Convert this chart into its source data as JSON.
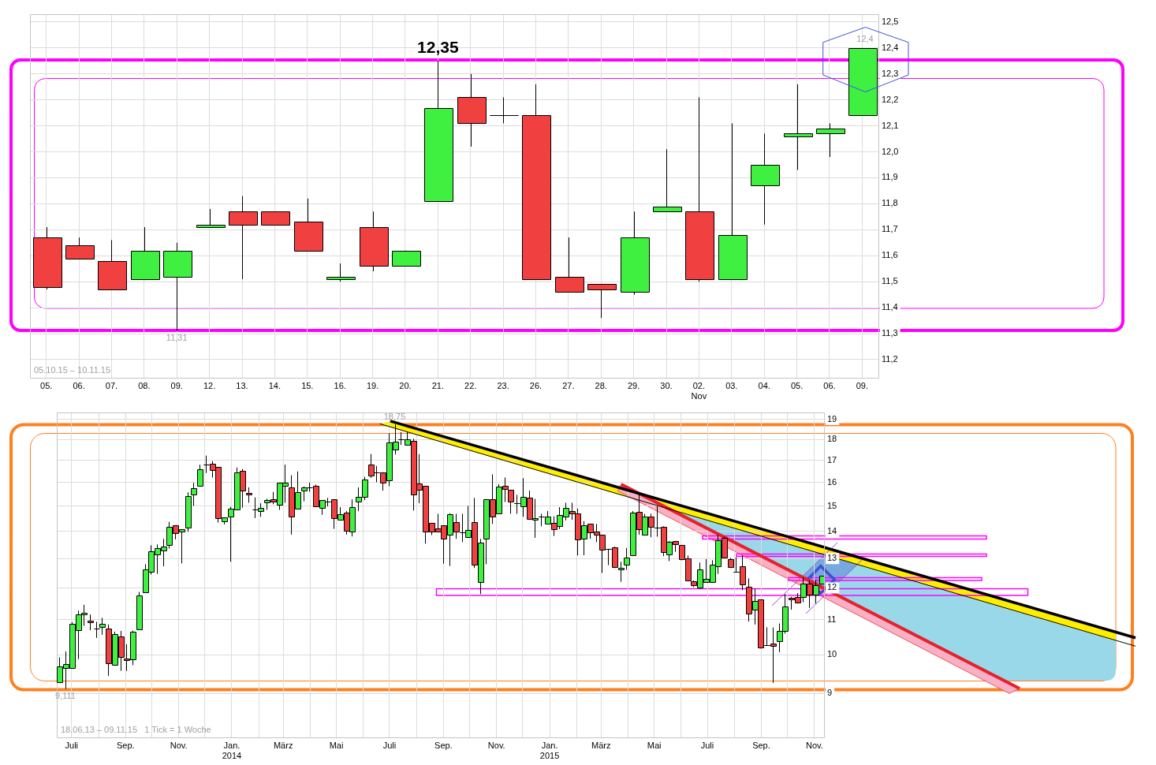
{
  "chart_data": [
    {
      "type": "candlestick",
      "categories": [
        "05.",
        "06.",
        "07.",
        "08.",
        "09.",
        "12.",
        "13.",
        "14.",
        "15.",
        "16.",
        "19.",
        "20.",
        "21.",
        "22.",
        "23.",
        "26.",
        "27.",
        "28.",
        "29.",
        "30.",
        "02.\nNov",
        "03.",
        "04.",
        "05.",
        "06.",
        "09."
      ],
      "ohlc": [
        [
          11.67,
          11.71,
          11.47,
          11.48
        ],
        [
          11.64,
          11.67,
          11.59,
          11.59
        ],
        [
          11.58,
          11.66,
          11.47,
          11.47
        ],
        [
          11.51,
          11.71,
          11.51,
          11.62
        ],
        [
          11.52,
          11.65,
          11.31,
          11.62
        ],
        [
          11.71,
          11.78,
          11.71,
          11.72
        ],
        [
          11.77,
          11.83,
          11.51,
          11.72
        ],
        [
          11.77,
          11.77,
          11.72,
          11.72
        ],
        [
          11.73,
          11.82,
          11.62,
          11.62
        ],
        [
          11.51,
          11.57,
          11.5,
          11.52
        ],
        [
          11.71,
          11.77,
          11.54,
          11.56
        ],
        [
          11.56,
          11.62,
          11.56,
          11.62
        ],
        [
          11.81,
          12.35,
          11.81,
          12.17
        ],
        [
          12.21,
          12.3,
          12.02,
          12.11
        ],
        [
          12.14,
          12.21,
          12.11,
          12.14
        ],
        [
          12.14,
          12.26,
          11.51,
          11.51
        ],
        [
          11.52,
          11.67,
          11.46,
          11.46
        ],
        [
          11.49,
          11.49,
          11.36,
          11.47
        ],
        [
          11.46,
          11.77,
          11.45,
          11.67
        ],
        [
          11.77,
          12.01,
          11.77,
          11.79
        ],
        [
          11.77,
          12.21,
          11.5,
          11.51
        ],
        [
          11.51,
          12.11,
          11.51,
          11.68
        ],
        [
          11.87,
          12.07,
          11.72,
          11.95
        ],
        [
          12.06,
          12.26,
          11.93,
          12.07
        ],
        [
          12.07,
          12.11,
          11.98,
          12.09
        ],
        [
          12.14,
          12.4,
          12.14,
          12.4
        ]
      ],
      "colors": [
        "#f04040",
        "#f04040",
        "#f04040",
        "#40f040",
        "#40f040",
        "#40f040",
        "#f04040",
        "#f04040",
        "#f04040",
        "#40f040",
        "#f04040",
        "#40f040",
        "#40f040",
        "#f04040",
        "#000000",
        "#f04040",
        "#f04040",
        "#f04040",
        "#40f040",
        "#40f040",
        "#f04040",
        "#40f040",
        "#40f040",
        "#40f040",
        "#40f040",
        "#40f040"
      ],
      "ylim": [
        11.13,
        12.53
      ],
      "yticks": [
        {
          "value": 11.2,
          "label": "11,2"
        },
        {
          "value": 11.3,
          "label": "11,3"
        },
        {
          "value": 11.4,
          "label": "11,4"
        },
        {
          "value": 11.5,
          "label": "11,5"
        },
        {
          "value": 11.6,
          "label": "11,6"
        },
        {
          "value": 11.7,
          "label": "11,7"
        },
        {
          "value": 11.8,
          "label": "11,8"
        },
        {
          "value": 11.9,
          "label": "11,9"
        },
        {
          "value": 12.0,
          "label": "12,0"
        },
        {
          "value": 12.1,
          "label": "12,1"
        },
        {
          "value": 12.2,
          "label": "12,2"
        },
        {
          "value": 12.3,
          "label": "12,3"
        },
        {
          "value": 12.4,
          "label": "12,4"
        },
        {
          "value": 12.5,
          "label": "12,5"
        }
      ],
      "grid": true,
      "annotations": [
        {
          "text": "12,35",
          "x": "21.",
          "y": 12.35
        },
        {
          "text": "11,31",
          "x": "09.",
          "y": 11.31
        },
        "12,4",
        "05.10.15 – 10.11.15"
      ]
    },
    {
      "type": "candlestick",
      "x": [
        "2013-06-17",
        "2013-06-24",
        "2013-07-01",
        "2013-07-08",
        "2013-07-15",
        "2013-07-22",
        "2013-07-29",
        "2013-08-05",
        "2013-08-12",
        "2013-08-19",
        "2013-08-26",
        "2013-09-02",
        "2013-09-09",
        "2013-09-16",
        "2013-09-23",
        "2013-09-30",
        "2013-10-07",
        "2013-10-14",
        "2013-10-21",
        "2013-10-28",
        "2013-11-04",
        "2013-11-11",
        "2013-11-18",
        "2013-11-25",
        "2013-12-02",
        "2013-12-09",
        "2013-12-16",
        "2013-12-23",
        "2013-12-30",
        "2014-01-06",
        "2014-01-13",
        "2014-01-20",
        "2014-01-27",
        "2014-02-03",
        "2014-02-10",
        "2014-02-17",
        "2014-02-24",
        "2014-03-03",
        "2014-03-10",
        "2014-03-17",
        "2014-03-24",
        "2014-03-31",
        "2014-04-07",
        "2014-04-14",
        "2014-04-21",
        "2014-04-28",
        "2014-05-05",
        "2014-05-12",
        "2014-05-19",
        "2014-05-26",
        "2014-06-02",
        "2014-06-09",
        "2014-06-16",
        "2014-06-23",
        "2014-06-30",
        "2014-07-07",
        "2014-07-14",
        "2014-07-21",
        "2014-07-28",
        "2014-08-04",
        "2014-08-11",
        "2014-08-18",
        "2014-08-25",
        "2014-09-01",
        "2014-09-08",
        "2014-09-15",
        "2014-09-22",
        "2014-09-29",
        "2014-10-06",
        "2014-10-13",
        "2014-10-20",
        "2014-10-27",
        "2014-11-03",
        "2014-11-10",
        "2014-11-17",
        "2014-11-24",
        "2014-12-01",
        "2014-12-08",
        "2014-12-15",
        "2014-12-22",
        "2014-12-29",
        "2015-01-05",
        "2015-01-12",
        "2015-01-19",
        "2015-01-26",
        "2015-02-02",
        "2015-02-09",
        "2015-02-16",
        "2015-02-23",
        "2015-03-02",
        "2015-03-09",
        "2015-03-16",
        "2015-03-23",
        "2015-03-30",
        "2015-04-06",
        "2015-04-13",
        "2015-04-20",
        "2015-04-27",
        "2015-05-04",
        "2015-05-11",
        "2015-05-18",
        "2015-05-25",
        "2015-06-01",
        "2015-06-08",
        "2015-06-15",
        "2015-06-22",
        "2015-06-29",
        "2015-07-06",
        "2015-07-13",
        "2015-07-20",
        "2015-07-27",
        "2015-08-03",
        "2015-08-10",
        "2015-08-17",
        "2015-08-24",
        "2015-08-31",
        "2015-09-07",
        "2015-09-14",
        "2015-09-21",
        "2015-09-28",
        "2015-10-05",
        "2015-10-12",
        "2015-10-19",
        "2015-10-26",
        "2015-11-02",
        "2015-11-09"
      ],
      "ohlc": [
        [
          9.27,
          9.93,
          9.27,
          9.68
        ],
        [
          9.64,
          10.09,
          9.111,
          9.75
        ],
        [
          9.64,
          10.93,
          9.64,
          10.88
        ],
        [
          10.69,
          11.28,
          9.88,
          11.16
        ],
        [
          11.16,
          11.46,
          10.82,
          11.21
        ],
        [
          10.97,
          11.16,
          10.69,
          10.92
        ],
        [
          10.74,
          10.94,
          10.47,
          10.74
        ],
        [
          10.78,
          11.06,
          10.56,
          10.87
        ],
        [
          10.73,
          10.86,
          9.44,
          9.78
        ],
        [
          9.72,
          10.65,
          9.72,
          10.57
        ],
        [
          10.52,
          10.67,
          9.57,
          9.93
        ],
        [
          9.89,
          10.29,
          9.57,
          9.85
        ],
        [
          9.87,
          10.68,
          9.72,
          10.65
        ],
        [
          10.71,
          11.87,
          10.71,
          11.75
        ],
        [
          11.87,
          12.8,
          11.84,
          12.62
        ],
        [
          12.53,
          13.48,
          12.45,
          13.26
        ],
        [
          13.14,
          13.51,
          12.47,
          13.37
        ],
        [
          13.29,
          13.72,
          12.73,
          13.43
        ],
        [
          13.5,
          14.37,
          13.36,
          14.17
        ],
        [
          14.23,
          14.23,
          13.7,
          13.95
        ],
        [
          14.0,
          14.08,
          12.83,
          14.08
        ],
        [
          14.14,
          15.58,
          13.99,
          15.42
        ],
        [
          15.47,
          15.99,
          15.01,
          15.75
        ],
        [
          15.84,
          16.8,
          15.84,
          16.6
        ],
        [
          16.8,
          17.22,
          16.42,
          16.8
        ],
        [
          16.84,
          16.96,
          16.22,
          16.55
        ],
        [
          16.7,
          16.7,
          14.34,
          14.53
        ],
        [
          14.38,
          14.54,
          14.27,
          14.54
        ],
        [
          14.57,
          14.97,
          12.89,
          14.89
        ],
        [
          14.86,
          16.67,
          14.86,
          16.45
        ],
        [
          16.53,
          16.6,
          14.94,
          15.65
        ],
        [
          15.55,
          15.79,
          15.14,
          15.48
        ],
        [
          14.88,
          15.36,
          14.52,
          14.88
        ],
        [
          14.8,
          15.12,
          14.57,
          14.93
        ],
        [
          15.15,
          15.3,
          14.85,
          15.25
        ],
        [
          15.28,
          15.59,
          15.08,
          15.19
        ],
        [
          15.06,
          15.99,
          14.85,
          15.99
        ],
        [
          15.86,
          16.8,
          15.14,
          15.99
        ],
        [
          15.79,
          16.32,
          13.88,
          14.57
        ],
        [
          14.89,
          16.49,
          14.89,
          15.59
        ],
        [
          15.65,
          15.83,
          15.2,
          15.79
        ],
        [
          15.79,
          15.99,
          15.6,
          15.79
        ],
        [
          15.86,
          15.91,
          14.99,
          14.99
        ],
        [
          14.93,
          15.25,
          14.65,
          15.25
        ],
        [
          15.2,
          15.34,
          14.99,
          15.2
        ],
        [
          15.28,
          15.28,
          14.1,
          14.53
        ],
        [
          14.46,
          14.96,
          14.46,
          14.67
        ],
        [
          14.74,
          14.8,
          13.88,
          14.02
        ],
        [
          14.0,
          15.28,
          13.81,
          14.96
        ],
        [
          15.18,
          15.79,
          14.8,
          15.38
        ],
        [
          15.38,
          16.25,
          15.25,
          16.13
        ],
        [
          16.8,
          17.29,
          16.2,
          16.3
        ],
        [
          16.46,
          16.74,
          16.01,
          16.46
        ],
        [
          16.45,
          16.45,
          15.65,
          15.99
        ],
        [
          16.1,
          18.3,
          15.84,
          17.86
        ],
        [
          17.52,
          18.75,
          17.27,
          17.89
        ],
        [
          18.0,
          18.36,
          17.73,
          18.0
        ],
        [
          17.73,
          18.36,
          17.73,
          18.0
        ],
        [
          17.93,
          18.03,
          14.82,
          15.47
        ],
        [
          15.95,
          17.29,
          15.12,
          15.67
        ],
        [
          15.86,
          15.86,
          13.54,
          14.0
        ],
        [
          14.32,
          14.32,
          13.86,
          14.0
        ],
        [
          14.11,
          14.69,
          14.0,
          14.0
        ],
        [
          14.23,
          14.23,
          12.82,
          13.72
        ],
        [
          13.87,
          14.71,
          12.74,
          14.67
        ],
        [
          14.35,
          14.69,
          13.72,
          14.0
        ],
        [
          13.98,
          14.69,
          13.6,
          13.98
        ],
        [
          13.78,
          15.01,
          13.78,
          14.05
        ],
        [
          14.35,
          15.34,
          12.67,
          12.78
        ],
        [
          12.19,
          13.72,
          11.8,
          13.58
        ],
        [
          13.72,
          15.28,
          12.8,
          15.28
        ],
        [
          15.28,
          16.36,
          14.29,
          14.57
        ],
        [
          14.72,
          15.93,
          14.72,
          15.81
        ],
        [
          15.86,
          16.22,
          15.17,
          15.72
        ],
        [
          15.67,
          15.67,
          14.69,
          15.18
        ],
        [
          15.12,
          15.47,
          14.69,
          15.12
        ],
        [
          15.0,
          16.19,
          14.57,
          15.38
        ],
        [
          15.35,
          15.65,
          14.48,
          14.48
        ],
        [
          14.46,
          15.3,
          13.76,
          14.53
        ],
        [
          14.57,
          14.69,
          14.2,
          14.57
        ],
        [
          14.29,
          14.8,
          14.29,
          14.57
        ],
        [
          14.32,
          14.59,
          13.83,
          14.09
        ],
        [
          14.2,
          14.96,
          14.09,
          14.64
        ],
        [
          14.59,
          15.14,
          14.43,
          14.93
        ],
        [
          14.8,
          15.14,
          14.45,
          14.72
        ],
        [
          14.69,
          14.9,
          13.11,
          13.69
        ],
        [
          13.72,
          14.4,
          13.12,
          14.25
        ],
        [
          14.29,
          14.29,
          13.72,
          13.98
        ],
        [
          14.0,
          14.29,
          13.6,
          13.87
        ],
        [
          13.87,
          13.87,
          12.5,
          13.31
        ],
        [
          13.35,
          13.35,
          12.77,
          13.35
        ],
        [
          13.41,
          13.43,
          12.67,
          12.7
        ],
        [
          12.61,
          12.89,
          12.2,
          12.67
        ],
        [
          12.78,
          13.38,
          12.61,
          13.04
        ],
        [
          13.11,
          14.8,
          13.11,
          14.75
        ],
        [
          14.77,
          15.51,
          13.88,
          14.09
        ],
        [
          13.89,
          14.69,
          13.89,
          14.57
        ],
        [
          14.57,
          14.69,
          13.78,
          14.17
        ],
        [
          14.15,
          15.01,
          13.8,
          14.15
        ],
        [
          14.17,
          14.2,
          13.09,
          13.24
        ],
        [
          13.16,
          13.64,
          12.91,
          13.62
        ],
        [
          13.64,
          13.64,
          13.24,
          13.52
        ],
        [
          13.48,
          13.48,
          12.94,
          12.98
        ],
        [
          13.0,
          13.11,
          12.22,
          12.25
        ],
        [
          12.21,
          12.25,
          12.03,
          12.08
        ],
        [
          12.01,
          12.86,
          12.01,
          12.61
        ],
        [
          12.19,
          12.98,
          12.19,
          12.29
        ],
        [
          12.19,
          12.94,
          12.17,
          12.78
        ],
        [
          12.73,
          13.87,
          12.47,
          13.67
        ],
        [
          13.77,
          13.8,
          13.03,
          13.03
        ],
        [
          12.98,
          13.02,
          12.69,
          12.69
        ],
        [
          12.54,
          13.05,
          12.54,
          12.54
        ],
        [
          12.73,
          13.11,
          11.93,
          12.12
        ],
        [
          12.03,
          12.32,
          10.95,
          11.18
        ],
        [
          11.3,
          11.97,
          10.86,
          11.57
        ],
        [
          11.62,
          11.62,
          10.17,
          10.2
        ],
        [
          10.26,
          10.78,
          10.25,
          10.26
        ],
        [
          10.3,
          10.77,
          9.26,
          10.24
        ],
        [
          10.37,
          10.89,
          10.07,
          10.67
        ],
        [
          10.67,
          11.8,
          10.59,
          11.4
        ],
        [
          11.67,
          11.71,
          11.31,
          11.62
        ],
        [
          11.71,
          11.83,
          11.5,
          11.52
        ],
        [
          11.71,
          12.35,
          11.54,
          12.14
        ],
        [
          12.14,
          12.26,
          11.36,
          11.79
        ],
        [
          11.77,
          12.26,
          11.5,
          12.09
        ],
        [
          12.14,
          12.4,
          12.14,
          12.4
        ]
      ],
      "colors": [
        "#40f040",
        "#40f040",
        "#40f040",
        "#40f040",
        "#40f040",
        "#f04040",
        "#000000",
        "#40f040",
        "#f04040",
        "#40f040",
        "#f04040",
        "#f04040",
        "#40f040",
        "#40f040",
        "#40f040",
        "#40f040",
        "#40f040",
        "#40f040",
        "#40f040",
        "#f04040",
        "#40f040",
        "#40f040",
        "#40f040",
        "#40f040",
        "#000000",
        "#f04040",
        "#f04040",
        "#40f040",
        "#40f040",
        "#40f040",
        "#f04040",
        "#f04040",
        "#000000",
        "#40f040",
        "#40f040",
        "#f04040",
        "#40f040",
        "#40f040",
        "#f04040",
        "#40f040",
        "#40f040",
        "#000000",
        "#f04040",
        "#40f040",
        "#000000",
        "#f04040",
        "#40f040",
        "#f04040",
        "#40f040",
        "#40f040",
        "#40f040",
        "#f04040",
        "#000000",
        "#f04040",
        "#40f040",
        "#40f040",
        "#000000",
        "#40f040",
        "#f04040",
        "#f04040",
        "#f04040",
        "#f04040",
        "#f04040",
        "#f04040",
        "#40f040",
        "#f04040",
        "#000000",
        "#40f040",
        "#f04040",
        "#40f040",
        "#40f040",
        "#f04040",
        "#40f040",
        "#f04040",
        "#f04040",
        "#000000",
        "#40f040",
        "#f04040",
        "#40f040",
        "#000000",
        "#40f040",
        "#f04040",
        "#40f040",
        "#40f040",
        "#f04040",
        "#f04040",
        "#40f040",
        "#f04040",
        "#f04040",
        "#f04040",
        "#000000",
        "#f04040",
        "#40f040",
        "#40f040",
        "#40f040",
        "#f04040",
        "#40f040",
        "#f04040",
        "#000000",
        "#f04040",
        "#40f040",
        "#f04040",
        "#f04040",
        "#f04040",
        "#f04040",
        "#40f040",
        "#40f040",
        "#40f040",
        "#40f040",
        "#f04040",
        "#f04040",
        "#000000",
        "#f04040",
        "#f04040",
        "#40f040",
        "#f04040",
        "#000000",
        "#f04040",
        "#40f040",
        "#40f040",
        "#f04040",
        "#f04040",
        "#40f040",
        "#f04040",
        "#40f040",
        "#40f040"
      ],
      "series": [
        {
          "type": "line",
          "color": "#000000",
          "x": [
            "2014-07-02",
            "2015-11-12"
          ],
          "values": [
            18.92,
            13.41
          ]
        },
        {
          "type": "line",
          "color": "#000000",
          "x": [
            "2014-06-20",
            "2015-11-12"
          ],
          "values": [
            18.78,
            13.14
          ]
        },
        {
          "type": "line",
          "color": "#e8202c",
          "x": [
            "2015-03-24",
            "2015-11-12"
          ],
          "values": [
            15.92,
            11.99
          ]
        }
      ],
      "log": "y",
      "xlim": [
        "2013-06-14",
        "2015-11-12"
      ],
      "xticks": [
        {
          "value": "2013-07-01",
          "label": "Juli"
        },
        {
          "value": "2013-08-01",
          "label": null
        },
        {
          "value": "2013-09-01",
          "label": "Sep."
        },
        {
          "value": "2013-10-01",
          "label": null
        },
        {
          "value": "2013-11-01",
          "label": "Nov."
        },
        {
          "value": "2013-12-01",
          "label": null
        },
        {
          "value": "2014-01-01",
          "label": "Jan.\n2014"
        },
        {
          "value": "2014-02-01",
          "label": null
        },
        {
          "value": "2014-03-01",
          "label": "März"
        },
        {
          "value": "2014-04-01",
          "label": null
        },
        {
          "value": "2014-05-01",
          "label": "Mai"
        },
        {
          "value": "2014-06-01",
          "label": null
        },
        {
          "value": "2014-07-01",
          "label": "Juli"
        },
        {
          "value": "2014-08-01",
          "label": null
        },
        {
          "value": "2014-09-01",
          "label": "Sep."
        },
        {
          "value": "2014-10-01",
          "label": null
        },
        {
          "value": "2014-11-01",
          "label": "Nov."
        },
        {
          "value": "2014-12-01",
          "label": null
        },
        {
          "value": "2015-01-01",
          "label": "Jan.\n2015"
        },
        {
          "value": "2015-02-01",
          "label": null
        },
        {
          "value": "2015-03-01",
          "label": "März"
        },
        {
          "value": "2015-04-01",
          "label": null
        },
        {
          "value": "2015-05-01",
          "label": "Mai"
        },
        {
          "value": "2015-06-01",
          "label": null
        },
        {
          "value": "2015-07-01",
          "label": "Juli"
        },
        {
          "value": "2015-08-01",
          "label": null
        },
        {
          "value": "2015-09-01",
          "label": "Sep."
        },
        {
          "value": "2015-10-01",
          "label": null
        },
        {
          "value": "2015-11-01",
          "label": "Nov."
        }
      ],
      "ylim": [
        7.98,
        19.37
      ],
      "yticks": [
        9,
        10,
        11,
        12,
        13,
        14,
        15,
        16,
        17,
        18,
        19
      ],
      "grid": true,
      "annotations": [
        {
          "text": "18,75",
          "x": "2014-07-07",
          "y": 18.75
        },
        {
          "text": "9,111",
          "x": "2013-06-24",
          "y": 9.111
        },
        "18.06.13 – 09.11.15   1 Tick = 1 Woche"
      ]
    }
  ]
}
